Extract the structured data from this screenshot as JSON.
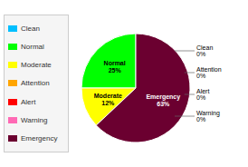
{
  "chart_data": {
    "type": "pie",
    "categories": [
      "Clean",
      "Normal",
      "Moderate",
      "Attention",
      "Alert",
      "Warning",
      "Emergency"
    ],
    "values": [
      0,
      25,
      12,
      0,
      0,
      0,
      63
    ],
    "value_labels": [
      "0%",
      "25%",
      "12%",
      "0%",
      "0%",
      "0%",
      "63%"
    ],
    "colors": [
      "#00bfff",
      "#00ff00",
      "#ffff00",
      "#ffa500",
      "#ff0000",
      "#ff69b4",
      "#6b0030"
    ],
    "data_labels": true,
    "legend": "left"
  }
}
